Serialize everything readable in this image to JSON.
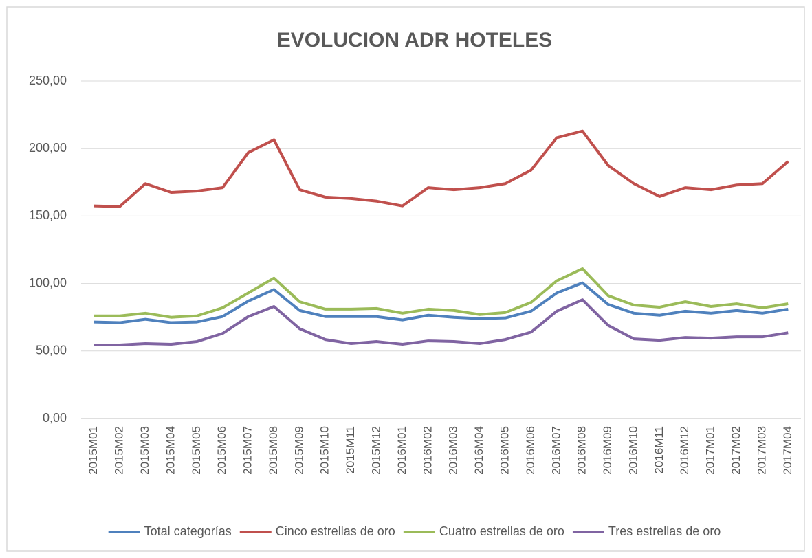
{
  "chart_data": {
    "type": "line",
    "title": "EVOLUCION ADR HOTELES",
    "categories": [
      "2015M01",
      "2015M02",
      "2015M03",
      "2015M04",
      "2015M05",
      "2015M06",
      "2015M07",
      "2015M08",
      "2015M09",
      "2015M10",
      "2015M11",
      "2015M12",
      "2016M01",
      "2016M02",
      "2016M03",
      "2016M04",
      "2016M05",
      "2016M06",
      "2016M07",
      "2016M08",
      "2016M09",
      "2016M10",
      "2016M11",
      "2016M12",
      "2017M01",
      "2017M02",
      "2017M03",
      "2017M04"
    ],
    "series": [
      {
        "name": "Total categorías",
        "color": "#4f81bd",
        "values": [
          71.5,
          71,
          73.5,
          71,
          71.5,
          75.5,
          87,
          95.5,
          80,
          75.5,
          75.5,
          75.5,
          73,
          76.5,
          75,
          74,
          74.5,
          79.5,
          93,
          100.5,
          84.5,
          78,
          76.5,
          79.5,
          78,
          80,
          78,
          81
        ]
      },
      {
        "name": "Cinco estrellas de oro",
        "color": "#c0504d",
        "values": [
          157.5,
          157,
          174,
          167.5,
          168.5,
          171,
          197,
          206.5,
          169.5,
          164,
          163,
          161,
          157.5,
          171,
          169.5,
          171,
          174,
          184,
          208,
          213,
          187.5,
          174,
          164.5,
          171,
          169.5,
          173,
          174,
          190.5
        ]
      },
      {
        "name": "Cuatro estrellas de oro",
        "color": "#9bbb59",
        "values": [
          76,
          76,
          78,
          75,
          76,
          82,
          93,
          104,
          86.5,
          81,
          81,
          81.5,
          78,
          81,
          80,
          77,
          78.5,
          86,
          102,
          111,
          91,
          84,
          82.5,
          86.5,
          83,
          85,
          82,
          85
        ]
      },
      {
        "name": "Tres estrellas de oro",
        "color": "#8064a2",
        "values": [
          54.5,
          54.5,
          55.5,
          55,
          57,
          63,
          75.5,
          83,
          66.5,
          58.5,
          55.5,
          57,
          55,
          57.5,
          57,
          55.5,
          58.5,
          64,
          79.5,
          88,
          69,
          59,
          58,
          60,
          59.5,
          60.5,
          60.5,
          63.5
        ]
      }
    ],
    "ylim": [
      0,
      250
    ],
    "yticks": [
      {
        "value": 0,
        "label": "0,00"
      },
      {
        "value": 50,
        "label": "50,00"
      },
      {
        "value": 100,
        "label": "100,00"
      },
      {
        "value": 150,
        "label": "150,00"
      },
      {
        "value": 200,
        "label": "200,00"
      },
      {
        "value": 250,
        "label": "250,00"
      }
    ],
    "grid": true,
    "legend": "bottom"
  }
}
